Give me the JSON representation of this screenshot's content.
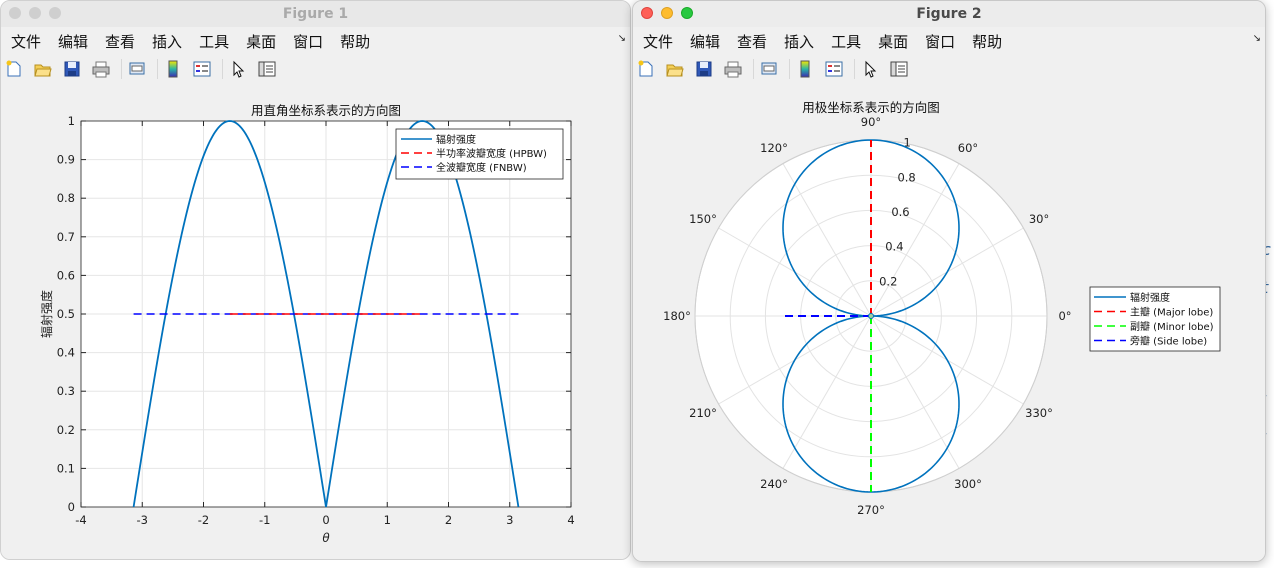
{
  "menu_labels": [
    "文件",
    "编辑",
    "查看",
    "插入",
    "工具",
    "桌面",
    "窗口",
    "帮助"
  ],
  "menu_corner": "↘",
  "toolbar_icons": [
    "new-figure-icon",
    "open-file-icon",
    "save-icon",
    "print-icon",
    "print-preview-icon",
    "colorbar-icon",
    "legend-icon",
    "pointer-icon",
    "property-editor-icon"
  ],
  "figure1": {
    "window_title": "Figure 1",
    "chart_data": {
      "type": "line",
      "title": "用直角坐标系表示的方向图",
      "xlabel": "θ",
      "ylabel": "辐射强度",
      "xlim": [
        -4,
        4
      ],
      "ylim": [
        0,
        1
      ],
      "xticks": [
        "-4",
        "-3",
        "-2",
        "-1",
        "0",
        "1",
        "2",
        "3",
        "4"
      ],
      "yticks": [
        "0",
        "0.1",
        "0.2",
        "0.3",
        "0.4",
        "0.5",
        "0.6",
        "0.7",
        "0.8",
        "0.9",
        "1"
      ],
      "grid": true,
      "legend_position": "top-right",
      "series": [
        {
          "name": "辐射强度",
          "function": "|sin θ|",
          "x_range": [
            -3.1416,
            3.1416
          ],
          "color": "#0072bd",
          "style": "solid"
        },
        {
          "name": "半功率波瓣宽度 (HPBW)",
          "x": [
            -1.5708,
            1.5708
          ],
          "y": [
            0.5,
            0.5
          ],
          "color": "#ff0000",
          "style": "dashed"
        },
        {
          "name": "全波瓣宽度 (FNBW)",
          "x": [
            -3.1416,
            3.1416
          ],
          "y": [
            0.5,
            0.5
          ],
          "color": "#0000ff",
          "style": "dashed"
        }
      ]
    }
  },
  "figure2": {
    "window_title": "Figure 2",
    "chart_data": {
      "type": "polar",
      "title": "用极坐标系表示的方向图",
      "rlim": [
        0,
        1
      ],
      "rticks": [
        "0.2",
        "0.4",
        "0.6",
        "0.8",
        "1"
      ],
      "theta_ticks": [
        "0°",
        "30°",
        "60°",
        "90°",
        "120°",
        "150°",
        "180°",
        "210°",
        "240°",
        "270°",
        "300°",
        "330°"
      ],
      "legend_position": "right",
      "series": [
        {
          "name": "辐射强度",
          "function": "|sin θ|",
          "color": "#0072bd",
          "style": "solid"
        },
        {
          "name": "主瓣 (Major lobe)",
          "theta_deg": 90,
          "r": [
            0,
            1
          ],
          "color": "#ff0000",
          "style": "dashed"
        },
        {
          "name": "副瓣 (Minor lobe)",
          "theta_deg": 270,
          "r": [
            0,
            1
          ],
          "color": "#00ff00",
          "style": "dashed"
        },
        {
          "name": "旁瓣 (Side lobe)",
          "theta_deg": 180,
          "r": [
            0,
            0.5
          ],
          "color": "#0000ff",
          "style": "dashed"
        }
      ]
    }
  }
}
